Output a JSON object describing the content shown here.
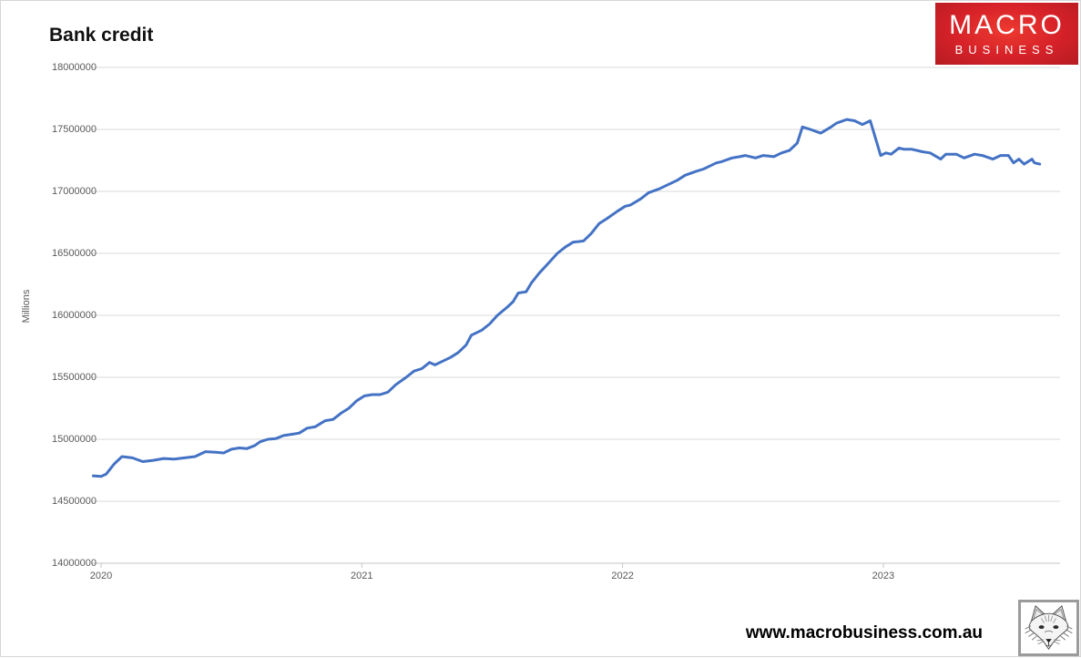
{
  "page": {
    "title": "Bank credit",
    "url_text": "www.macrobusiness.com.au"
  },
  "logo": {
    "line1": "MACRO",
    "line2": "BUSINESS",
    "bg_color": "#d52128",
    "text_color": "#ffffff"
  },
  "chart_data": {
    "type": "line",
    "title": "Bank credit",
    "xlabel": "",
    "ylabel": "Millions",
    "legend": "none",
    "grid": "horizontal",
    "line_color": "#4472c4",
    "gridline_color": "#d9d9d9",
    "axis_line_color": "#c6c6c6",
    "axis_text_color": "#595959",
    "xlim": [
      2019.965,
      2023.678
    ],
    "ylim": [
      14000000,
      18000000
    ],
    "x_ticks": [
      2020,
      2021,
      2022,
      2023
    ],
    "x_tick_labels": [
      "2020",
      "2021",
      "2022",
      "2023"
    ],
    "y_ticks": [
      18000000,
      17500000,
      17000000,
      16500000,
      16000000,
      15500000,
      15000000,
      14500000,
      14000000
    ],
    "y_tick_labels": [
      "18000000",
      "17500000",
      "17000000",
      "16500000",
      "16000000",
      "15500000",
      "15000000",
      "14500000",
      "14000000"
    ],
    "series": [
      {
        "name": "Bank credit",
        "points": [
          [
            2019.97,
            14705000
          ],
          [
            2020.0,
            14700000
          ],
          [
            2020.02,
            14720000
          ],
          [
            2020.05,
            14800000
          ],
          [
            2020.08,
            14860000
          ],
          [
            2020.12,
            14850000
          ],
          [
            2020.16,
            14820000
          ],
          [
            2020.2,
            14830000
          ],
          [
            2020.24,
            14845000
          ],
          [
            2020.28,
            14840000
          ],
          [
            2020.32,
            14850000
          ],
          [
            2020.36,
            14860000
          ],
          [
            2020.4,
            14900000
          ],
          [
            2020.44,
            14895000
          ],
          [
            2020.47,
            14890000
          ],
          [
            2020.5,
            14920000
          ],
          [
            2020.53,
            14930000
          ],
          [
            2020.56,
            14925000
          ],
          [
            2020.59,
            14950000
          ],
          [
            2020.61,
            14980000
          ],
          [
            2020.64,
            15000000
          ],
          [
            2020.67,
            15005000
          ],
          [
            2020.7,
            15030000
          ],
          [
            2020.73,
            15040000
          ],
          [
            2020.76,
            15050000
          ],
          [
            2020.79,
            15090000
          ],
          [
            2020.82,
            15100000
          ],
          [
            2020.86,
            15150000
          ],
          [
            2020.89,
            15160000
          ],
          [
            2020.92,
            15210000
          ],
          [
            2020.95,
            15250000
          ],
          [
            2020.98,
            15310000
          ],
          [
            2021.01,
            15350000
          ],
          [
            2021.04,
            15360000
          ],
          [
            2021.07,
            15360000
          ],
          [
            2021.1,
            15380000
          ],
          [
            2021.13,
            15440000
          ],
          [
            2021.17,
            15500000
          ],
          [
            2021.2,
            15550000
          ],
          [
            2021.23,
            15570000
          ],
          [
            2021.26,
            15620000
          ],
          [
            2021.28,
            15600000
          ],
          [
            2021.31,
            15630000
          ],
          [
            2021.34,
            15660000
          ],
          [
            2021.37,
            15700000
          ],
          [
            2021.4,
            15760000
          ],
          [
            2021.42,
            15840000
          ],
          [
            2021.46,
            15880000
          ],
          [
            2021.49,
            15930000
          ],
          [
            2021.52,
            16000000
          ],
          [
            2021.56,
            16070000
          ],
          [
            2021.58,
            16110000
          ],
          [
            2021.6,
            16180000
          ],
          [
            2021.63,
            16190000
          ],
          [
            2021.65,
            16260000
          ],
          [
            2021.68,
            16340000
          ],
          [
            2021.72,
            16430000
          ],
          [
            2021.75,
            16500000
          ],
          [
            2021.78,
            16550000
          ],
          [
            2021.81,
            16590000
          ],
          [
            2021.85,
            16600000
          ],
          [
            2021.88,
            16660000
          ],
          [
            2021.91,
            16740000
          ],
          [
            2021.94,
            16780000
          ],
          [
            2021.98,
            16840000
          ],
          [
            2022.01,
            16880000
          ],
          [
            2022.03,
            16890000
          ],
          [
            2022.07,
            16940000
          ],
          [
            2022.1,
            16990000
          ],
          [
            2022.14,
            17020000
          ],
          [
            2022.17,
            17050000
          ],
          [
            2022.21,
            17090000
          ],
          [
            2022.24,
            17130000
          ],
          [
            2022.28,
            17160000
          ],
          [
            2022.31,
            17180000
          ],
          [
            2022.33,
            17200000
          ],
          [
            2022.36,
            17230000
          ],
          [
            2022.38,
            17240000
          ],
          [
            2022.42,
            17270000
          ],
          [
            2022.45,
            17280000
          ],
          [
            2022.47,
            17290000
          ],
          [
            2022.51,
            17270000
          ],
          [
            2022.54,
            17290000
          ],
          [
            2022.58,
            17280000
          ],
          [
            2022.61,
            17310000
          ],
          [
            2022.64,
            17330000
          ],
          [
            2022.67,
            17390000
          ],
          [
            2022.69,
            17520000
          ],
          [
            2022.72,
            17500000
          ],
          [
            2022.76,
            17470000
          ],
          [
            2022.8,
            17520000
          ],
          [
            2022.82,
            17550000
          ],
          [
            2022.86,
            17580000
          ],
          [
            2022.89,
            17570000
          ],
          [
            2022.92,
            17540000
          ],
          [
            2022.95,
            17570000
          ],
          [
            2022.99,
            17290000
          ],
          [
            2023.01,
            17310000
          ],
          [
            2023.03,
            17300000
          ],
          [
            2023.06,
            17350000
          ],
          [
            2023.08,
            17340000
          ],
          [
            2023.11,
            17340000
          ],
          [
            2023.15,
            17320000
          ],
          [
            2023.18,
            17310000
          ],
          [
            2023.22,
            17260000
          ],
          [
            2023.24,
            17300000
          ],
          [
            2023.28,
            17300000
          ],
          [
            2023.31,
            17270000
          ],
          [
            2023.35,
            17300000
          ],
          [
            2023.38,
            17290000
          ],
          [
            2023.42,
            17260000
          ],
          [
            2023.45,
            17290000
          ],
          [
            2023.48,
            17290000
          ],
          [
            2023.5,
            17230000
          ],
          [
            2023.52,
            17260000
          ],
          [
            2023.54,
            17220000
          ],
          [
            2023.57,
            17260000
          ],
          [
            2023.58,
            17230000
          ],
          [
            2023.6,
            17220000
          ]
        ]
      }
    ]
  }
}
